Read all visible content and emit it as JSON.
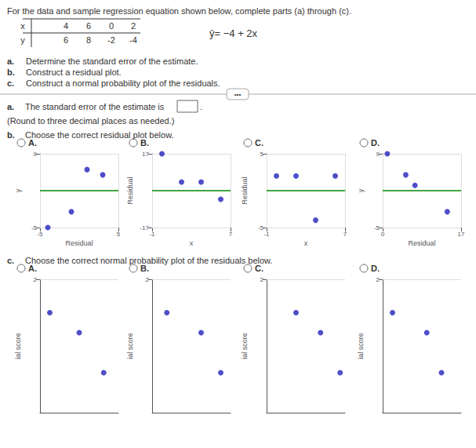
{
  "title": "For the data and sample regression equation shown below, complete parts (a) through (c).",
  "annotations": [
    "x",
    "4",
    "6",
    "0",
    "2",
    "y",
    "6",
    "8",
    "-2",
    "-4",
    "ŷ= −4 + 2x",
    "a.",
    "Determine the standard error of the estimate.",
    "b.",
    "Construct a residual plot.",
    "c.",
    "Construct a normal probability plot of the residuals.",
    "•••",
    "a.",
    "The standard error of the estimate is",
    ".",
    "(Round to three decimal places as needed.)",
    "b.",
    "Choose the correct residual plot below.",
    "c.",
    "Choose the correct normal probability plot of the residuals below."
  ],
  "chart_data": [
    {
      "type": "scatter",
      "title": "A.",
      "xlabel": "Residual",
      "ylabel": "y",
      "x": [
        -4,
        -1,
        1,
        3
      ],
      "values": [
        -5,
        -2,
        6,
        5
      ],
      "color": "#2222BB",
      "xlim": [
        -5,
        5
      ],
      "ylim": [
        -5,
        9
      ],
      "xticks": [
        -5,
        5
      ],
      "yticks": [
        -5,
        9
      ],
      "hline": {
        "y": 2,
        "color": "#008800"
      },
      "grid": true
    },
    {
      "type": "scatter",
      "title": "B.",
      "xlabel": "x",
      "ylabel": "Residual",
      "x": [
        0,
        2,
        4,
        6
      ],
      "values": [
        17,
        4,
        4,
        -4
      ],
      "color": "#2222BB",
      "xlim": [
        -1,
        7
      ],
      "ylim": [
        -17,
        17
      ],
      "xticks": [
        -1,
        7
      ],
      "yticks": [
        -17,
        17
      ],
      "hline": {
        "y": 0,
        "color": "#008800"
      },
      "grid": true
    },
    {
      "type": "scatter",
      "title": "C.",
      "xlabel": "x",
      "ylabel": "Residual",
      "x": [
        0,
        2,
        4,
        6
      ],
      "values": [
        2,
        2,
        -4,
        2
      ],
      "color": "#2222BB",
      "xlim": [
        -1,
        7
      ],
      "ylim": [
        -5,
        5
      ],
      "xticks": [
        -1,
        7
      ],
      "yticks": [
        -5,
        5
      ],
      "hline": {
        "y": 0,
        "color": "#008800"
      },
      "grid": true
    },
    {
      "type": "scatter",
      "title": "D.",
      "xlabel": "Residual",
      "ylabel": "y",
      "x": [
        1,
        5,
        7,
        14
      ],
      "values": [
        9,
        5,
        3,
        -2
      ],
      "color": "#2222BB",
      "xlim": [
        0,
        17
      ],
      "ylim": [
        -5,
        9
      ],
      "xticks": [
        0,
        17
      ],
      "yticks": [
        -5,
        9
      ],
      "hline": {
        "y": 2,
        "color": "#008800"
      },
      "grid": true
    },
    {
      "type": "scatter",
      "title": "A.",
      "ylabel": "ial score",
      "x": [
        -3,
        0,
        2.5
      ],
      "values": [
        1.0,
        0.4,
        -0.8
      ],
      "color": "#2222BB",
      "xlim": [
        -4,
        4
      ],
      "ylim": [
        -2,
        2
      ],
      "yticks": [
        2
      ],
      "tick_labels": "y",
      "grid": true
    },
    {
      "type": "scatter",
      "title": "B.",
      "ylabel": "ial score",
      "x": [
        -2.5,
        1,
        3
      ],
      "values": [
        1.0,
        0.4,
        -0.8
      ],
      "color": "#2222BB",
      "xlim": [
        -4,
        4
      ],
      "ylim": [
        -2,
        2
      ],
      "yticks": [
        2
      ],
      "tick_labels": "y",
      "grid": true
    },
    {
      "type": "scatter",
      "title": "C.",
      "ylabel": "ial score",
      "x": [
        -1,
        1.5,
        3.5
      ],
      "values": [
        1.0,
        0.4,
        -0.8
      ],
      "color": "#2222BB",
      "xlim": [
        -4,
        4
      ],
      "ylim": [
        -2,
        2
      ],
      "yticks": [
        2
      ],
      "tick_labels": "y",
      "grid": true
    },
    {
      "type": "scatter",
      "title": "D.",
      "ylabel": "ial score",
      "x": [
        -3,
        0.5,
        2
      ],
      "values": [
        1.0,
        0.4,
        -0.8
      ],
      "color": "#2222BB",
      "xlim": [
        -4,
        4
      ],
      "ylim": [
        -2,
        2
      ],
      "yticks": [
        2
      ],
      "tick_labels": "y",
      "grid": true
    }
  ]
}
